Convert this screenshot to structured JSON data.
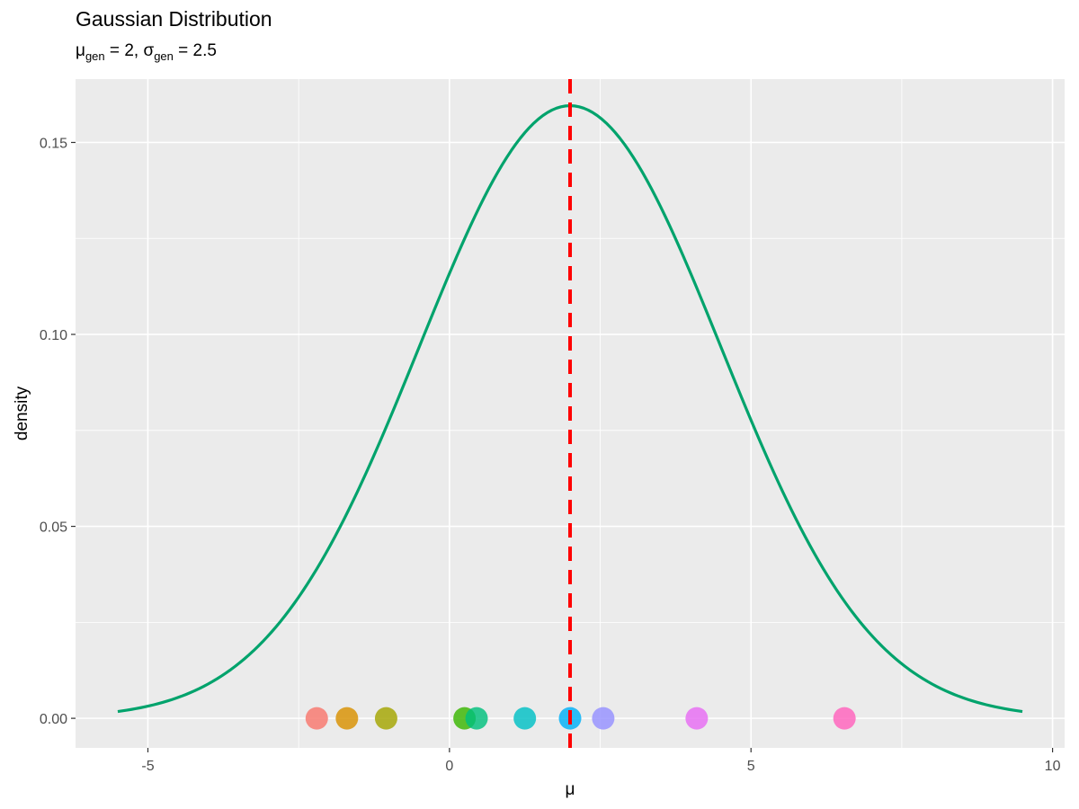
{
  "chart_data": {
    "type": "line",
    "title": "Gaussian Distribution",
    "subtitle": {
      "mu_symbol": "μ",
      "sigma_symbol": "σ",
      "subscript": "gen",
      "mu_value": "2",
      "sigma_value": "2.5",
      "separator": ","
    },
    "xlabel": "μ",
    "ylabel": "density",
    "xlim": [
      -6.2,
      10.2
    ],
    "ylim": [
      -0.0077,
      0.1665
    ],
    "x_ticks": [
      -5,
      0,
      5,
      10
    ],
    "x_tick_labels": [
      "-5",
      "0",
      "5",
      "10"
    ],
    "y_ticks": [
      0.0,
      0.05,
      0.1,
      0.15
    ],
    "y_tick_labels": [
      "0.00",
      "0.05",
      "0.10",
      "0.15"
    ],
    "x_minor_gridlines": [
      -2.5,
      2.5,
      7.5
    ],
    "y_minor_gridlines": [
      0.025,
      0.075,
      0.125
    ],
    "grid": true,
    "panel_background": "#ebebeb",
    "curve": {
      "mean": 2,
      "sd": 2.5,
      "x_range": [
        -5.5,
        9.5
      ],
      "color": "#00a36c"
    },
    "vline": {
      "x": 2,
      "color": "#ff0000",
      "style": "dashed"
    },
    "points": [
      {
        "x": -2.2,
        "y": 0,
        "color": "#F8766D"
      },
      {
        "x": -1.7,
        "y": 0,
        "color": "#D89000"
      },
      {
        "x": -1.05,
        "y": 0,
        "color": "#A3A500"
      },
      {
        "x": 0.25,
        "y": 0,
        "color": "#39B600"
      },
      {
        "x": 0.45,
        "y": 0,
        "color": "#00BF7D"
      },
      {
        "x": 1.25,
        "y": 0,
        "color": "#00BFC4"
      },
      {
        "x": 2.0,
        "y": 0,
        "color": "#00B0F6"
      },
      {
        "x": 2.55,
        "y": 0,
        "color": "#9590FF"
      },
      {
        "x": 4.1,
        "y": 0,
        "color": "#E76BF3"
      },
      {
        "x": 6.55,
        "y": 0,
        "color": "#FF62BC"
      }
    ]
  }
}
